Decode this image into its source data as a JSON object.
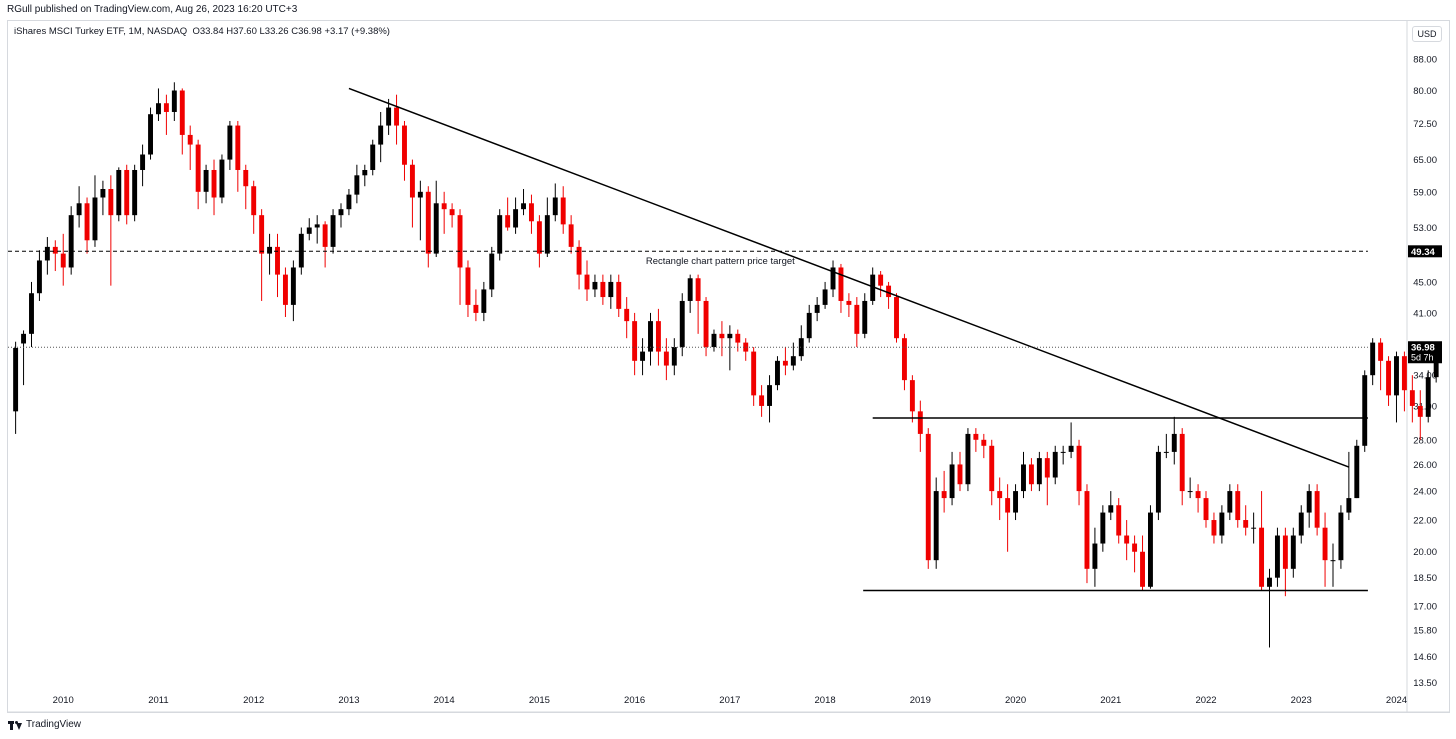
{
  "header": {
    "published": "RGull published on TradingView.com, Aug 26, 2023 16:20 UTC+3"
  },
  "symbol": {
    "name": "iShares MSCI Turkey ETF, 1M, NASDAQ",
    "ohlc": "O33.84  H37.60  L33.26  C36.98  +3.17 (+9.38%)"
  },
  "currency": "USD",
  "footer": {
    "brand": "TradingView"
  },
  "colors": {
    "up": "#000000",
    "down": "#f00000",
    "grid": "#ffffff",
    "axis_text": "#131722"
  },
  "chart_data": {
    "type": "candlestick",
    "title": "",
    "xlabel": "",
    "ylabel": "",
    "scale": "log",
    "ylim": [
      13.2,
      92
    ],
    "y_ticks": [
      "88.00",
      "80.00",
      "72.50",
      "65.00",
      "59.00",
      "53.00",
      "45.00",
      "41.00",
      "34.00",
      "31.00",
      "28.00",
      "26.00",
      "24.00",
      "22.00",
      "20.00",
      "18.50",
      "17.00",
      "15.80",
      "14.60",
      "13.50"
    ],
    "x_ticks": [
      "2010",
      "2011",
      "2012",
      "2013",
      "2014",
      "2015",
      "2016",
      "2017",
      "2018",
      "2019",
      "2020",
      "2021",
      "2022",
      "2023",
      "2024"
    ],
    "x_range": [
      2009.42,
      2024.1
    ],
    "price_labels": [
      {
        "value": 49.34,
        "text": "49.34"
      },
      {
        "value": 36.98,
        "text": "36.98",
        "sub": "5d 7h"
      }
    ],
    "annotations": [
      {
        "text": "Rectangle chart pattern price target",
        "x": 2016.9,
        "y": 47.5
      }
    ],
    "lines": [
      {
        "name": "downtrend",
        "style": "solid",
        "points": [
          [
            2013.0,
            80.5
          ],
          [
            2023.5,
            25.8
          ]
        ]
      },
      {
        "name": "rectangle-top",
        "style": "solid",
        "points": [
          [
            2018.5,
            29.9
          ],
          [
            2023.7,
            29.9
          ]
        ]
      },
      {
        "name": "rectangle-bottom",
        "style": "solid",
        "points": [
          [
            2018.4,
            17.8
          ],
          [
            2023.7,
            17.8
          ]
        ]
      },
      {
        "name": "target-level",
        "style": "dashed",
        "points": [
          [
            2009.42,
            49.34
          ],
          [
            2023.7,
            49.34
          ]
        ]
      },
      {
        "name": "last-price",
        "style": "dotted",
        "points": [
          [
            2009.42,
            36.98
          ],
          [
            2023.7,
            36.98
          ]
        ]
      }
    ],
    "candles": [
      [
        30.5,
        36.9,
        37.6,
        28.5
      ],
      [
        37.4,
        38.5,
        38.9,
        33.0
      ],
      [
        38.5,
        43.5,
        45.0,
        37.0
      ],
      [
        43.5,
        48.0,
        49.5,
        42.5
      ],
      [
        48.0,
        50.0,
        51.5,
        46.0
      ],
      [
        50.0,
        49.0,
        51.0,
        46.5
      ],
      [
        49.0,
        47.0,
        52.0,
        44.5
      ],
      [
        47.0,
        55.0,
        56.5,
        46.0
      ],
      [
        55.0,
        57.0,
        60.0,
        53.0
      ],
      [
        57.0,
        51.0,
        58.0,
        49.0
      ],
      [
        51.0,
        58.0,
        62.0,
        50.0
      ],
      [
        58.0,
        59.5,
        61.0,
        55.0
      ],
      [
        59.5,
        55.0,
        62.0,
        44.5
      ],
      [
        55.0,
        63.0,
        63.5,
        54.0
      ],
      [
        63.0,
        55.0,
        64.0,
        53.5
      ],
      [
        55.0,
        63.0,
        64.0,
        54.0
      ],
      [
        63.0,
        66.0,
        68.0,
        60.0
      ],
      [
        66.0,
        74.5,
        76.0,
        65.0
      ],
      [
        74.5,
        77.0,
        80.5,
        73.0
      ],
      [
        77.0,
        75.0,
        79.0,
        70.0
      ],
      [
        75.0,
        80.0,
        82.0,
        73.0
      ],
      [
        80.0,
        70.0,
        80.5,
        66.0
      ],
      [
        70.0,
        68.0,
        72.0,
        63.0
      ],
      [
        68.0,
        59.0,
        69.0,
        56.0
      ],
      [
        59.0,
        63.0,
        64.0,
        57.0
      ],
      [
        63.0,
        58.0,
        65.0,
        55.0
      ],
      [
        58.0,
        65.0,
        66.0,
        57.0
      ],
      [
        65.0,
        72.0,
        73.0,
        63.0
      ],
      [
        72.0,
        63.0,
        73.0,
        59.0
      ],
      [
        63.0,
        60.0,
        64.0,
        56.0
      ],
      [
        60.0,
        55.0,
        61.0,
        52.0
      ],
      [
        55.0,
        49.0,
        56.0,
        42.5
      ],
      [
        49.0,
        50.0,
        52.0,
        46.0
      ],
      [
        50.0,
        46.0,
        52.0,
        43.0
      ],
      [
        46.0,
        42.0,
        47.0,
        40.5
      ],
      [
        42.0,
        47.0,
        48.0,
        40.0
      ],
      [
        47.0,
        52.0,
        53.0,
        46.0
      ],
      [
        52.0,
        53.0,
        54.5,
        51.0
      ],
      [
        53.0,
        53.5,
        55.0,
        50.5
      ],
      [
        53.5,
        50.0,
        54.0,
        47.0
      ],
      [
        50.0,
        55.0,
        56.0,
        49.0
      ],
      [
        55.0,
        56.0,
        57.0,
        53.0
      ],
      [
        56.0,
        58.5,
        59.5,
        55.0
      ],
      [
        58.5,
        62.0,
        64.0,
        57.0
      ],
      [
        62.0,
        63.0,
        64.0,
        60.0
      ],
      [
        63.0,
        68.0,
        69.0,
        62.0
      ],
      [
        68.0,
        72.0,
        75.0,
        64.5
      ],
      [
        72.0,
        76.0,
        78.0,
        70.0
      ],
      [
        76.0,
        72.0,
        79.0,
        68.0
      ],
      [
        72.0,
        64.0,
        73.0,
        61.0
      ],
      [
        64.0,
        58.0,
        65.0,
        53.0
      ],
      [
        58.0,
        59.0,
        61.0,
        51.0
      ],
      [
        59.0,
        49.0,
        60.0,
        47.0
      ],
      [
        49.0,
        57.0,
        61.0,
        48.5
      ],
      [
        57.0,
        56.0,
        59.0,
        52.0
      ],
      [
        56.0,
        55.0,
        57.0,
        53.0
      ],
      [
        55.0,
        47.0,
        56.0,
        42.0
      ],
      [
        47.0,
        42.0,
        48.0,
        40.5
      ],
      [
        42.0,
        41.0,
        44.0,
        40.0
      ],
      [
        41.0,
        44.0,
        45.0,
        40.0
      ],
      [
        44.0,
        49.0,
        50.0,
        43.0
      ],
      [
        49.0,
        55.0,
        56.0,
        48.0
      ],
      [
        55.0,
        53.0,
        58.0,
        52.5
      ],
      [
        53.0,
        56.0,
        58.0,
        52.0
      ],
      [
        56.0,
        57.0,
        59.5,
        55.0
      ],
      [
        57.0,
        54.0,
        58.5,
        52.0
      ],
      [
        54.0,
        49.0,
        55.0,
        47.0
      ],
      [
        49.0,
        55.0,
        58.0,
        48.5
      ],
      [
        55.0,
        58.0,
        60.5,
        54.0
      ],
      [
        58.0,
        53.5,
        60.0,
        52.0
      ],
      [
        53.5,
        50.0,
        55.0,
        49.0
      ],
      [
        50.0,
        46.0,
        51.0,
        44.0
      ],
      [
        46.0,
        44.0,
        48.0,
        42.5
      ],
      [
        44.0,
        45.0,
        46.0,
        43.0
      ],
      [
        45.0,
        43.0,
        46.0,
        42.0
      ],
      [
        43.0,
        45.0,
        46.0,
        41.5
      ],
      [
        45.0,
        41.5,
        46.0,
        40.5
      ],
      [
        41.5,
        40.0,
        43.0,
        38.0
      ],
      [
        40.0,
        35.5,
        41.0,
        34.0
      ],
      [
        35.5,
        36.5,
        38.0,
        34.0
      ],
      [
        36.5,
        40.0,
        41.0,
        35.0
      ],
      [
        40.0,
        36.5,
        41.5,
        35.0
      ],
      [
        36.5,
        35.0,
        38.0,
        33.5
      ],
      [
        35.0,
        37.0,
        38.0,
        34.0
      ],
      [
        37.0,
        42.5,
        43.5,
        36.0
      ],
      [
        42.5,
        45.5,
        46.0,
        41.0
      ],
      [
        45.5,
        42.5,
        46.0,
        38.5
      ],
      [
        42.5,
        37.0,
        43.0,
        36.0
      ],
      [
        37.0,
        38.5,
        39.0,
        36.5
      ],
      [
        38.5,
        38.0,
        40.0,
        36.0
      ],
      [
        38.0,
        38.5,
        39.5,
        34.5
      ],
      [
        38.5,
        37.5,
        39.0,
        36.5
      ],
      [
        37.5,
        36.5,
        38.0,
        35.5
      ],
      [
        36.5,
        32.0,
        37.0,
        31.0
      ],
      [
        32.0,
        31.0,
        33.0,
        30.0
      ],
      [
        31.0,
        33.0,
        34.0,
        29.5
      ],
      [
        33.0,
        35.5,
        36.0,
        32.5
      ],
      [
        35.5,
        35.0,
        37.0,
        34.0
      ],
      [
        35.0,
        36.0,
        37.5,
        34.5
      ],
      [
        36.0,
        38.0,
        39.5,
        35.5
      ],
      [
        38.0,
        41.0,
        42.0,
        37.5
      ],
      [
        41.0,
        42.0,
        43.0,
        40.0
      ],
      [
        42.0,
        44.0,
        45.0,
        41.5
      ],
      [
        44.0,
        47.0,
        48.0,
        43.0
      ],
      [
        47.0,
        42.5,
        47.5,
        41.0
      ],
      [
        42.5,
        42.0,
        43.5,
        40.5
      ],
      [
        42.0,
        38.5,
        43.0,
        37.0
      ],
      [
        38.5,
        42.5,
        43.5,
        38.0
      ],
      [
        42.5,
        46.0,
        47.0,
        42.0
      ],
      [
        46.0,
        44.5,
        46.5,
        43.0
      ],
      [
        44.5,
        43.0,
        45.0,
        41.5
      ],
      [
        43.0,
        38.0,
        43.5,
        37.5
      ],
      [
        38.0,
        33.5,
        38.5,
        32.5
      ],
      [
        33.5,
        30.5,
        34.0,
        29.5
      ],
      [
        30.5,
        28.5,
        31.5,
        27.0
      ],
      [
        28.5,
        19.5,
        29.0,
        19.0
      ],
      [
        19.5,
        24.0,
        25.0,
        19.0
      ],
      [
        24.0,
        23.5,
        25.5,
        22.5
      ],
      [
        23.5,
        26.0,
        27.0,
        23.0
      ],
      [
        26.0,
        24.5,
        27.0,
        24.0
      ],
      [
        24.5,
        28.5,
        29.0,
        24.0
      ],
      [
        28.5,
        28.0,
        29.0,
        27.0
      ],
      [
        28.0,
        27.5,
        28.5,
        26.5
      ],
      [
        27.5,
        24.0,
        28.0,
        23.0
      ],
      [
        24.0,
        23.5,
        25.0,
        22.0
      ],
      [
        23.5,
        22.5,
        24.5,
        20.0
      ],
      [
        22.5,
        24.0,
        24.5,
        22.0
      ],
      [
        24.0,
        26.0,
        27.0,
        23.5
      ],
      [
        26.0,
        24.5,
        26.5,
        24.0
      ],
      [
        24.5,
        26.5,
        27.0,
        24.0
      ],
      [
        26.5,
        25.0,
        27.0,
        23.0
      ],
      [
        25.0,
        27.0,
        27.5,
        24.5
      ],
      [
        27.0,
        27.0,
        27.5,
        26.0
      ],
      [
        27.0,
        27.5,
        29.5,
        26.5
      ],
      [
        27.5,
        24.0,
        28.0,
        23.0
      ],
      [
        24.0,
        19.0,
        24.5,
        18.2
      ],
      [
        19.0,
        20.5,
        21.5,
        18.0
      ],
      [
        20.5,
        22.5,
        23.0,
        20.0
      ],
      [
        22.5,
        23.0,
        24.0,
        22.0
      ],
      [
        23.0,
        21.0,
        23.5,
        20.5
      ],
      [
        21.0,
        20.5,
        22.0,
        19.5
      ],
      [
        20.5,
        20.0,
        21.0,
        18.8
      ],
      [
        20.0,
        18.0,
        21.0,
        17.8
      ],
      [
        18.0,
        22.5,
        23.0,
        17.9
      ],
      [
        22.5,
        27.0,
        27.5,
        22.0
      ],
      [
        27.0,
        27.0,
        28.5,
        26.5
      ],
      [
        27.0,
        28.5,
        30.0,
        26.0
      ],
      [
        28.5,
        24.0,
        29.0,
        23.0
      ],
      [
        24.0,
        24.0,
        25.0,
        23.5
      ],
      [
        24.0,
        23.5,
        24.5,
        22.5
      ],
      [
        23.5,
        22.0,
        24.0,
        21.5
      ],
      [
        22.0,
        21.0,
        22.5,
        20.5
      ],
      [
        21.0,
        22.5,
        23.0,
        20.5
      ],
      [
        22.5,
        24.0,
        24.5,
        22.0
      ],
      [
        24.0,
        22.0,
        24.5,
        21.5
      ],
      [
        22.0,
        21.5,
        23.0,
        21.0
      ],
      [
        21.5,
        21.5,
        22.5,
        20.5
      ],
      [
        21.5,
        18.0,
        24.0,
        17.8
      ],
      [
        18.0,
        18.5,
        19.0,
        15.0
      ],
      [
        18.5,
        21.0,
        21.5,
        18.0
      ],
      [
        21.0,
        19.0,
        21.5,
        17.5
      ],
      [
        19.0,
        21.0,
        21.5,
        18.5
      ],
      [
        21.0,
        22.5,
        23.0,
        20.5
      ],
      [
        22.5,
        24.0,
        24.5,
        21.5
      ],
      [
        24.0,
        21.5,
        24.5,
        21.0
      ],
      [
        21.5,
        19.5,
        22.5,
        18.0
      ],
      [
        19.5,
        19.5,
        20.5,
        18.0
      ],
      [
        19.5,
        22.5,
        23.0,
        19.0
      ],
      [
        22.5,
        23.5,
        27.0,
        22.0
      ],
      [
        23.5,
        27.5,
        28.0,
        23.5
      ],
      [
        27.5,
        34.0,
        34.5,
        27.0
      ],
      [
        34.0,
        37.5,
        38.0,
        33.0
      ],
      [
        37.5,
        35.5,
        38.0,
        32.5
      ],
      [
        35.5,
        32.0,
        36.0,
        31.0
      ],
      [
        32.0,
        36.0,
        36.5,
        29.5
      ],
      [
        36.0,
        32.5,
        36.5,
        30.5
      ],
      [
        32.5,
        31.0,
        34.0,
        29.5
      ],
      [
        31.0,
        30.0,
        32.5,
        28.0
      ],
      [
        30.0,
        33.8,
        34.5,
        29.5
      ],
      [
        33.8,
        36.98,
        37.6,
        33.26
      ]
    ]
  }
}
